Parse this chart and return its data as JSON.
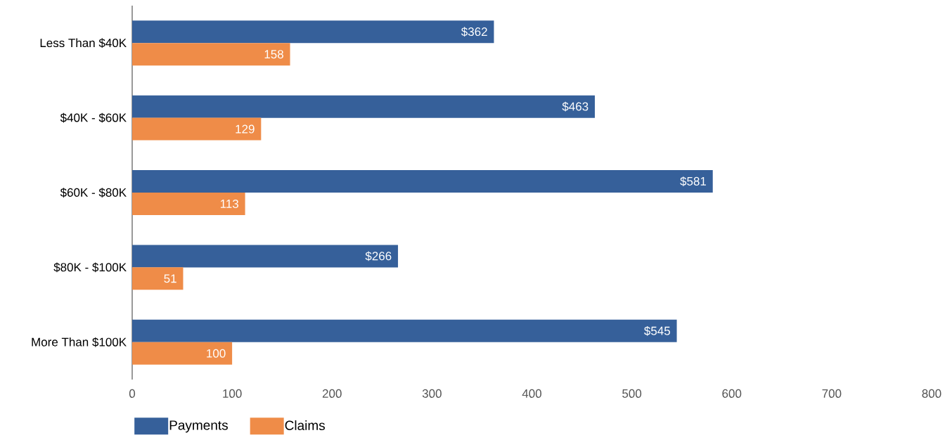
{
  "chart_data": {
    "type": "bar",
    "orientation": "horizontal",
    "categories": [
      "Less Than $40K",
      "$40K - $60K",
      "$60K - $80K",
      "$80K - $100K",
      "More Than $100K"
    ],
    "series": [
      {
        "name": "Payments",
        "color": "#36609a",
        "values": [
          362,
          463,
          581,
          266,
          545
        ],
        "value_labels": [
          "$362",
          "$463",
          "$581",
          "$266",
          "$545"
        ]
      },
      {
        "name": "Claims",
        "color": "#ef8c48",
        "values": [
          158,
          129,
          113,
          51,
          100
        ],
        "value_labels": [
          "158",
          "129",
          "113",
          "51",
          "100"
        ]
      }
    ],
    "xlim": [
      0,
      800
    ],
    "xticks": [
      0,
      100,
      200,
      300,
      400,
      500,
      600,
      700,
      800
    ],
    "legend": "bottom left"
  }
}
